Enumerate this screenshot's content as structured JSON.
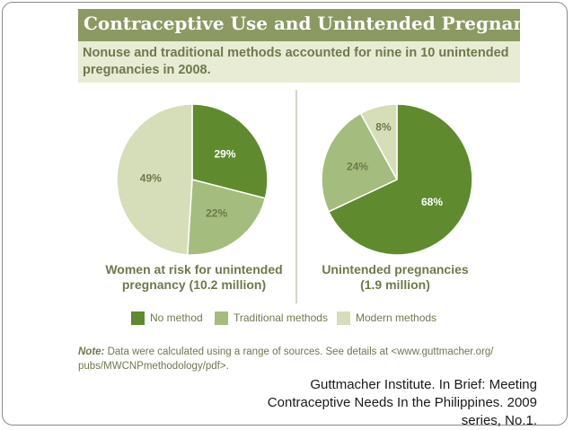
{
  "header": {
    "title": "Contraceptive Use and Unintended Pregnancy",
    "subtitle": "Nonuse and traditional methods accounted for nine in 10 unintended pregnancies in 2008."
  },
  "colors": {
    "no_method": "#5f8a2e",
    "traditional": "#a4bd7e",
    "modern": "#d5deb9",
    "text_green": "#6d7a4b"
  },
  "chart_data": [
    {
      "type": "pie",
      "title": "Women at risk for unintended pregnancy (10.2 million)",
      "categories": [
        "No method",
        "Traditional methods",
        "Modern methods"
      ],
      "values": [
        29,
        22,
        49
      ],
      "labels": [
        "29%",
        "22%",
        "49%"
      ]
    },
    {
      "type": "pie",
      "title": "Unintended pregnancies (1.9 million)",
      "categories": [
        "No method",
        "Traditional methods",
        "Modern methods"
      ],
      "values": [
        68,
        24,
        8
      ],
      "labels": [
        "68%",
        "24%",
        "8%"
      ]
    }
  ],
  "captions": {
    "left_line1": "Women at risk for unintended",
    "left_line2": "pregnancy (10.2 million)",
    "right_line1": "Unintended pregnancies",
    "right_line2": "(1.9 million)"
  },
  "legend": {
    "items": [
      "No method",
      "Traditional methods",
      "Modern methods"
    ],
    "colors": [
      "#5f8a2e",
      "#a4bd7e",
      "#d5deb9"
    ]
  },
  "note": {
    "label": "Note:",
    "line1": "Data were calculated using a range of sources. See details at <www.guttmacher.org/",
    "line2": "pubs/MWCNPmethodology/pdf>."
  },
  "citation": {
    "line1": "Guttmacher Institute. In Brief: Meeting",
    "line2": "Contraceptive Needs In the Philippines.  2009",
    "line3": "series, No.1."
  }
}
